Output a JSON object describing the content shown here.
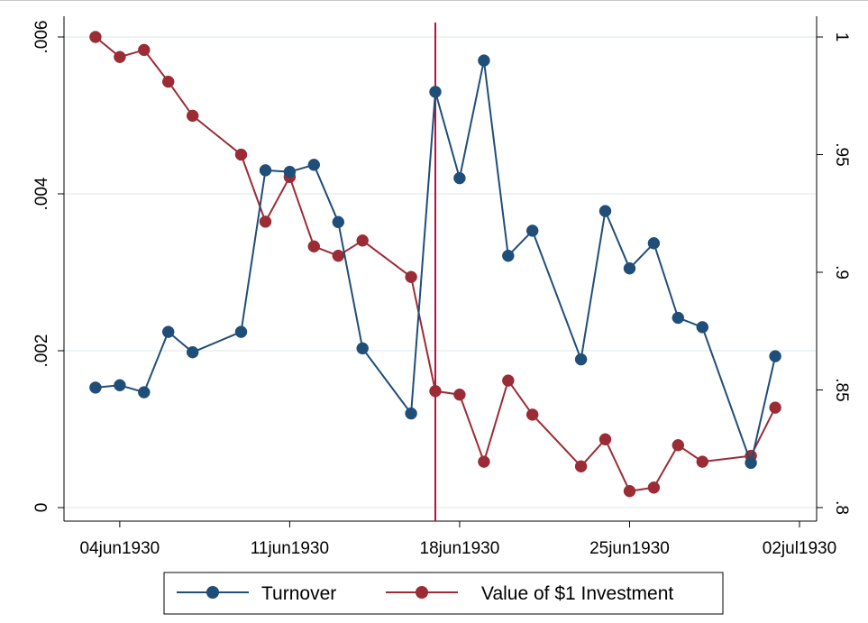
{
  "chart_data": {
    "type": "line",
    "x_axis": {
      "ticks": [
        "04jun1930",
        "11jun1930",
        "18jun1930",
        "25jun1930",
        "02jul1930"
      ],
      "range": [
        "1930-06-02",
        "1930-07-02"
      ]
    },
    "y_left": {
      "ticks": [
        0,
        0.002,
        0.004,
        0.006
      ],
      "tick_labels": [
        "0",
        ".002",
        ".004",
        ".006"
      ],
      "range": [
        0,
        0.006
      ]
    },
    "y_right": {
      "ticks": [
        0.8,
        0.85,
        0.9,
        0.95,
        1
      ],
      "tick_labels": [
        ".8",
        ".85",
        ".9",
        ".95",
        "1"
      ],
      "range": [
        0.8,
        1.0
      ]
    },
    "vertical_line": {
      "date": "1930-06-17",
      "color": "#b5123c"
    },
    "grid": true,
    "legend_position": "bottom",
    "series": [
      {
        "name": "Turnover",
        "axis": "left",
        "color": "#1f4e79",
        "points": [
          [
            "1930-06-03",
            0.00153
          ],
          [
            "1930-06-04",
            0.00156
          ],
          [
            "1930-06-05",
            0.00147
          ],
          [
            "1930-06-06",
            0.00224
          ],
          [
            "1930-06-07",
            0.00198
          ],
          [
            "1930-06-09",
            0.00224
          ],
          [
            "1930-06-10",
            0.0043
          ],
          [
            "1930-06-11",
            0.00428
          ],
          [
            "1930-06-12",
            0.00437
          ],
          [
            "1930-06-13",
            0.00364
          ],
          [
            "1930-06-14",
            0.00203
          ],
          [
            "1930-06-16",
            0.0012
          ],
          [
            "1930-06-17",
            0.0053
          ],
          [
            "1930-06-18",
            0.0042
          ],
          [
            "1930-06-19",
            0.0057
          ],
          [
            "1930-06-20",
            0.00321
          ],
          [
            "1930-06-21",
            0.00353
          ],
          [
            "1930-06-23",
            0.00189
          ],
          [
            "1930-06-24",
            0.00378
          ],
          [
            "1930-06-25",
            0.00305
          ],
          [
            "1930-06-26",
            0.00337
          ],
          [
            "1930-06-27",
            0.00242
          ],
          [
            "1930-06-28",
            0.0023
          ],
          [
            "1930-06-30",
            0.00057
          ],
          [
            "1930-07-01",
            0.00193
          ]
        ]
      },
      {
        "name": "Value of $1 Investment",
        "axis": "right",
        "color": "#9b2c35",
        "points": [
          [
            "1930-06-03",
            1.0
          ],
          [
            "1930-06-04",
            0.9915
          ],
          [
            "1930-06-05",
            0.9945
          ],
          [
            "1930-06-06",
            0.981
          ],
          [
            "1930-06-07",
            0.9665
          ],
          [
            "1930-06-09",
            0.95
          ],
          [
            "1930-06-10",
            0.9215
          ],
          [
            "1930-06-11",
            0.9405
          ],
          [
            "1930-06-12",
            0.911
          ],
          [
            "1930-06-13",
            0.907
          ],
          [
            "1930-06-14",
            0.9135
          ],
          [
            "1930-06-16",
            0.898
          ],
          [
            "1930-06-17",
            0.8495
          ],
          [
            "1930-06-18",
            0.848
          ],
          [
            "1930-06-19",
            0.8195
          ],
          [
            "1930-06-20",
            0.854
          ],
          [
            "1930-06-21",
            0.8395
          ],
          [
            "1930-06-23",
            0.8175
          ],
          [
            "1930-06-24",
            0.829
          ],
          [
            "1930-06-25",
            0.807
          ],
          [
            "1930-06-26",
            0.8085
          ],
          [
            "1930-06-27",
            0.8265
          ],
          [
            "1930-06-28",
            0.8195
          ],
          [
            "1930-06-30",
            0.822
          ],
          [
            "1930-07-01",
            0.8425
          ]
        ]
      }
    ]
  }
}
